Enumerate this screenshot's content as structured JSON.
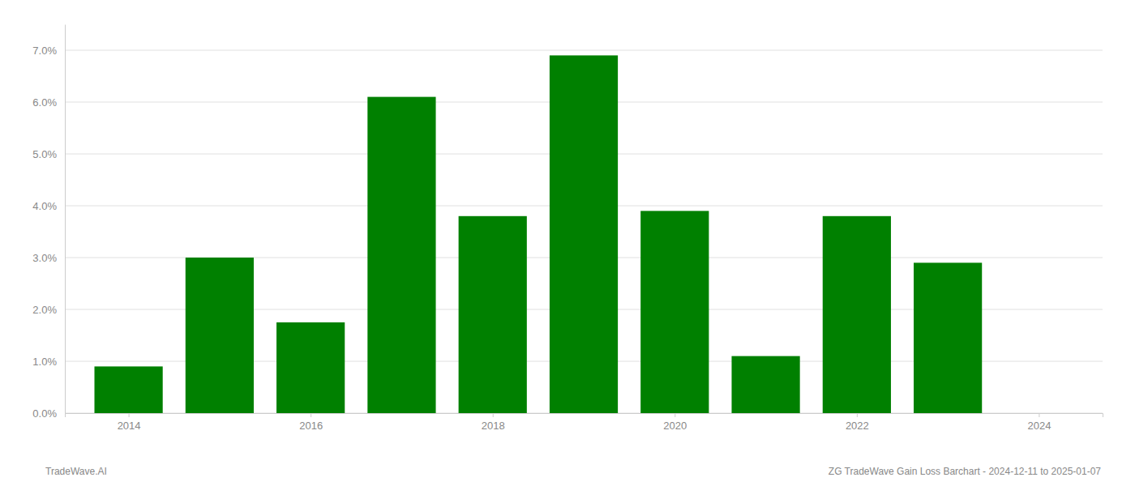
{
  "chart_data": {
    "type": "bar",
    "x": [
      2014,
      2015,
      2016,
      2017,
      2018,
      2019,
      2020,
      2021,
      2022,
      2023
    ],
    "values": [
      0.009,
      0.03,
      0.0175,
      0.061,
      0.038,
      0.069,
      0.039,
      0.011,
      0.038,
      0.029
    ],
    "color": "#008000",
    "xlim": [
      2013.3,
      2024.7
    ],
    "xticks": [
      2014,
      2016,
      2018,
      2020,
      2022,
      2024
    ],
    "ylim": [
      0,
      0.075
    ],
    "yticks": [
      {
        "value": 0.0,
        "label": "0.0%"
      },
      {
        "value": 0.01,
        "label": "1.0%"
      },
      {
        "value": 0.02,
        "label": "2.0%"
      },
      {
        "value": 0.03,
        "label": "3.0%"
      },
      {
        "value": 0.04,
        "label": "4.0%"
      },
      {
        "value": 0.05,
        "label": "5.0%"
      },
      {
        "value": 0.06,
        "label": "6.0%"
      },
      {
        "value": 0.07,
        "label": "7.0%"
      }
    ],
    "grid": true,
    "annotations": [
      "TradeWave.AI",
      "ZG TradeWave Gain Loss Barchart - 2024-12-11 to 2025-01-07"
    ]
  }
}
